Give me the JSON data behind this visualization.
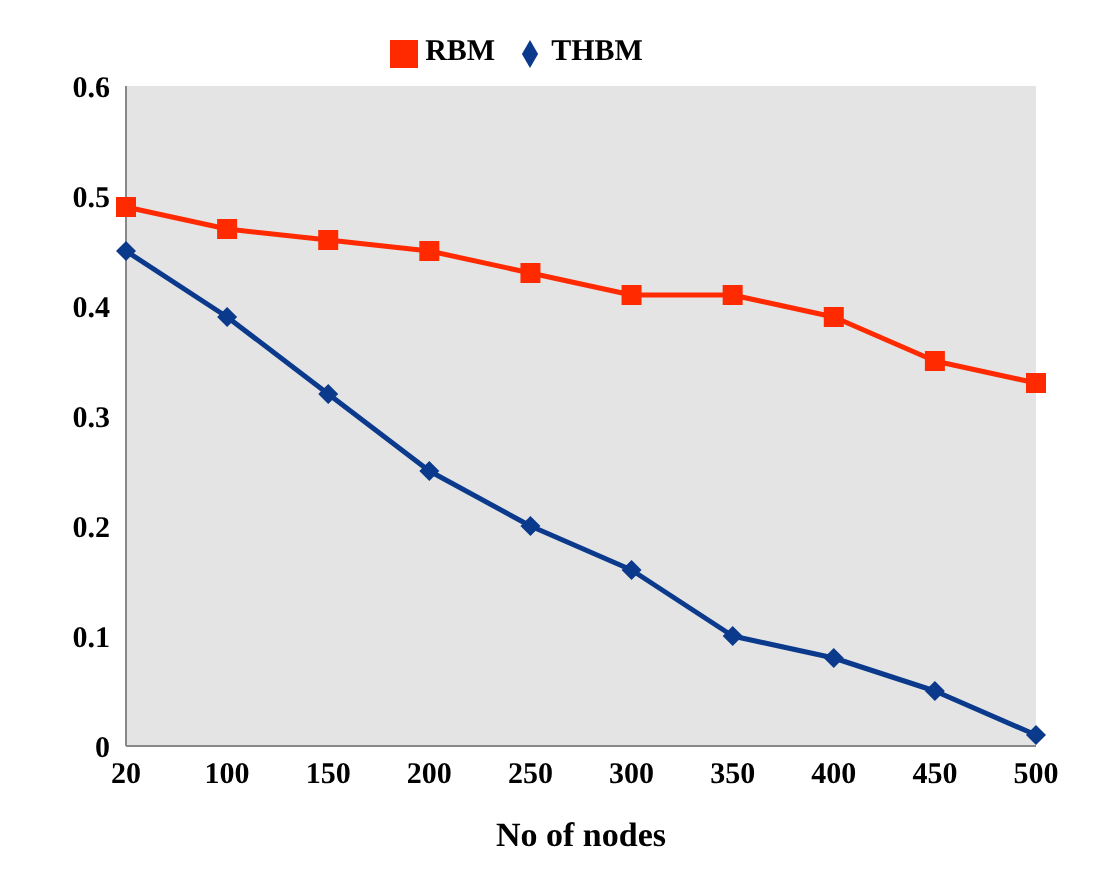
{
  "chart_data": {
    "type": "line",
    "xlabel": "No of  nodes",
    "categories": [
      "20",
      "100",
      "150",
      "200",
      "250",
      "300",
      "350",
      "400",
      "450",
      "500"
    ],
    "series": [
      {
        "name": "RBM",
        "color": "#ff2a00",
        "marker": "square",
        "values": [
          0.49,
          0.47,
          0.46,
          0.45,
          0.43,
          0.41,
          0.41,
          0.39,
          0.35,
          0.33
        ]
      },
      {
        "name": "THBM",
        "color": "#0b3a8c",
        "marker": "diamond",
        "values": [
          0.45,
          0.39,
          0.32,
          0.25,
          0.2,
          0.16,
          0.1,
          0.08,
          0.05,
          0.01
        ]
      }
    ],
    "ylim": [
      0,
      0.6
    ],
    "yticks": [
      0,
      0.1,
      0.2,
      0.3,
      0.4,
      0.5,
      0.6
    ],
    "legend": "top",
    "grid": false
  }
}
